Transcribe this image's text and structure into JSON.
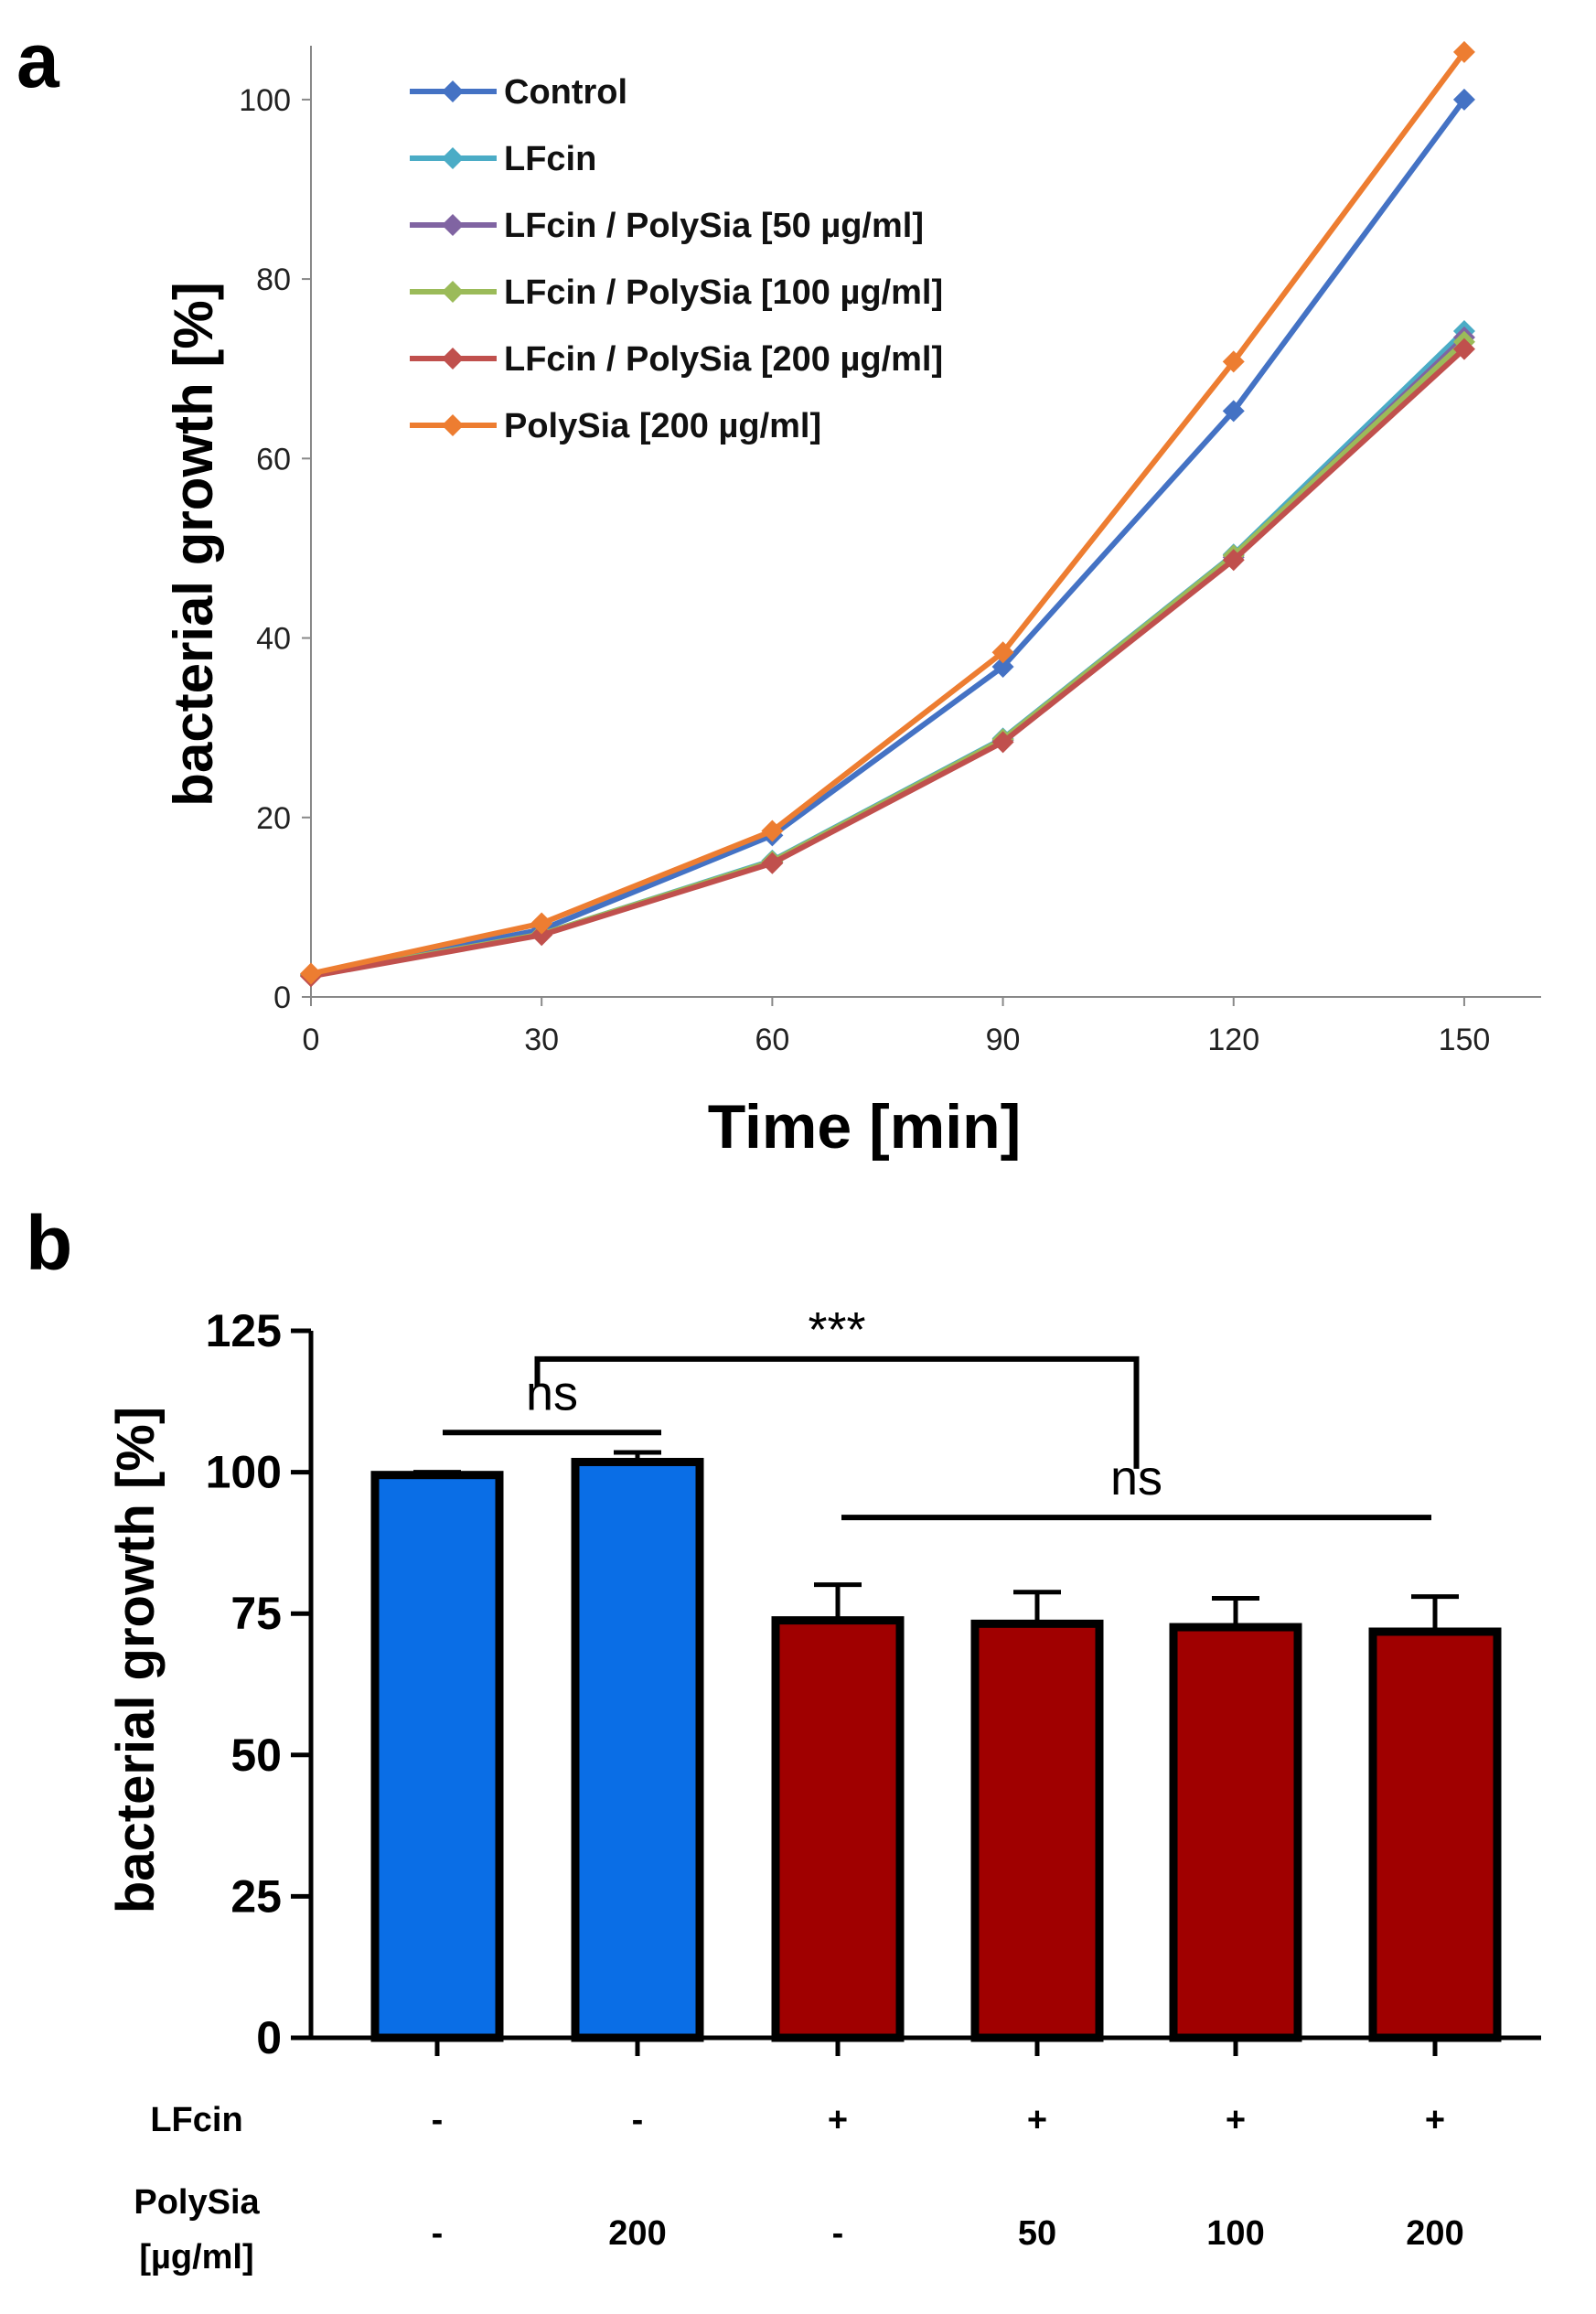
{
  "chart_data": [
    {
      "panel": "a",
      "type": "line",
      "xlabel": "Time [min]",
      "ylabel": "bacterial growth [%]",
      "x": [
        0,
        30,
        60,
        90,
        120,
        150
      ],
      "xticks": [
        "0",
        "30",
        "60",
        "90",
        "120",
        "150"
      ],
      "yticks": [
        "0",
        "20",
        "40",
        "60",
        "80",
        "100"
      ],
      "xlim": [
        0,
        160
      ],
      "ylim": [
        0,
        106
      ],
      "legend_position": "top-left",
      "series": [
        {
          "name": "Control",
          "color": "#4472C4",
          "values": [
            2.5,
            7.5,
            18.0,
            36.8,
            65.3,
            100.0
          ]
        },
        {
          "name": "LFcin",
          "color": "#4BACC6",
          "values": [
            2.4,
            7.0,
            15.2,
            28.8,
            49.3,
            74.2
          ]
        },
        {
          "name": "LFcin / PolySia [50 µg/ml]",
          "color": "#8064A2",
          "values": [
            2.4,
            7.0,
            15.0,
            28.6,
            49.0,
            73.5
          ]
        },
        {
          "name": "LFcin / PolySia [100 µg/ml]",
          "color": "#9BBB59",
          "values": [
            2.4,
            7.0,
            15.1,
            28.7,
            49.2,
            73.0
          ]
        },
        {
          "name": "LFcin / PolySia [200 µg/ml]",
          "color": "#C0504D",
          "values": [
            2.3,
            6.9,
            14.9,
            28.4,
            48.7,
            72.2
          ]
        },
        {
          "name": "PolySia [200 µg/ml]",
          "color": "#ED7D31",
          "values": [
            2.6,
            8.2,
            18.5,
            38.4,
            70.8,
            105.3
          ]
        }
      ]
    },
    {
      "panel": "b",
      "type": "bar",
      "ylabel": "bacterial growth [%]",
      "ylim": [
        0,
        125
      ],
      "yticks": [
        "0",
        "25",
        "50",
        "75",
        "100",
        "125"
      ],
      "values": [
        99.5,
        101.8,
        73.8,
        73.2,
        72.6,
        71.8
      ],
      "errors": [
        0.5,
        1.7,
        6.3,
        5.6,
        5.1,
        6.2
      ],
      "colors": [
        "#0A6EE6",
        "#0A6EE6",
        "#A00000",
        "#A00000",
        "#A00000",
        "#A00000"
      ],
      "condition_rows": [
        {
          "label": "LFcin",
          "values": [
            "-",
            "-",
            "+",
            "+",
            "+",
            "+"
          ]
        },
        {
          "label": "PolySia",
          "label2": "[µg/ml]",
          "values": [
            "-",
            "200",
            "-",
            "50",
            "100",
            "200"
          ]
        }
      ],
      "annotations": [
        {
          "text": "ns",
          "from_bar": 1,
          "to_bar": 2,
          "level": 107
        },
        {
          "text": "***",
          "from_bar": 1.5,
          "to_bar": 4.5,
          "level": 120
        },
        {
          "text": "ns",
          "from_bar": 3,
          "to_bar": 6,
          "level": 92
        }
      ]
    }
  ],
  "panel_labels": {
    "a": "a",
    "b": "b"
  }
}
